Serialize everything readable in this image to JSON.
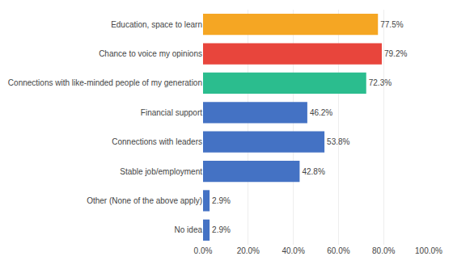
{
  "chart_data": {
    "type": "bar",
    "orientation": "horizontal",
    "categories": [
      "No idea",
      "Other (None of the above apply)",
      "Stable job/employment",
      "Connections with leaders",
      "Financial support",
      "Connections with like-minded people of my generation",
      "Chance to voice my opinions",
      "Education, space to learn"
    ],
    "values": [
      2.9,
      2.9,
      42.8,
      53.8,
      46.2,
      72.3,
      79.2,
      77.5
    ],
    "value_labels": [
      "2.9%",
      "2.9%",
      "42.8%",
      "53.8%",
      "46.2%",
      "72.3%",
      "79.2%",
      "77.5%"
    ],
    "colors": [
      "#4472C4",
      "#4472C4",
      "#4472C4",
      "#4472C4",
      "#4472C4",
      "#2BBD8E",
      "#E8453C",
      "#F5A623"
    ],
    "xlim": [
      0,
      100
    ],
    "xticks": [
      {
        "value": 0,
        "label": "0.0%"
      },
      {
        "value": 20,
        "label": "20.0%"
      },
      {
        "value": 40,
        "label": "40.0%"
      },
      {
        "value": 60,
        "label": "60.0%"
      },
      {
        "value": 80,
        "label": "80.0%"
      },
      {
        "value": 100,
        "label": "100.0%"
      }
    ],
    "grid": true,
    "data_labels": true
  }
}
